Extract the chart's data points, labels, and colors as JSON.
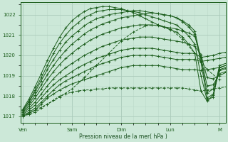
{
  "bg_color": "#cce8d8",
  "grid_color_major": "#aacaba",
  "grid_color_minor": "#bbd8c8",
  "line_color": "#1a5c1a",
  "xlabel": "Pression niveau de la mer( hPa )",
  "xlabel_color": "#1a5020",
  "xtick_labels": [
    "Ven",
    "Sam",
    "Dim",
    "Lun",
    "M"
  ],
  "xtick_positions": [
    0,
    24,
    48,
    72,
    96
  ],
  "ylim": [
    1016.7,
    1022.6
  ],
  "yticks": [
    1017,
    1018,
    1019,
    1020,
    1021,
    1022
  ],
  "xlim": [
    -1,
    99
  ],
  "series": [
    {
      "x": [
        0,
        3,
        6,
        9,
        12,
        15,
        18,
        21,
        24,
        27,
        30,
        33,
        36,
        39,
        42,
        45,
        48,
        51,
        54,
        57,
        60,
        63,
        66,
        69,
        72,
        75,
        78,
        81,
        84,
        87,
        90,
        93,
        96,
        99
      ],
      "y": [
        1017.0,
        1017.1,
        1017.2,
        1017.4,
        1017.6,
        1017.8,
        1018.0,
        1018.1,
        1018.2,
        1018.25,
        1018.3,
        1018.3,
        1018.35,
        1018.35,
        1018.4,
        1018.4,
        1018.4,
        1018.4,
        1018.4,
        1018.4,
        1018.4,
        1018.4,
        1018.4,
        1018.4,
        1018.4,
        1018.4,
        1018.4,
        1018.35,
        1018.3,
        1018.25,
        1018.3,
        1018.35,
        1018.4,
        1018.45
      ],
      "dashed": true
    },
    {
      "x": [
        0,
        3,
        6,
        9,
        12,
        15,
        18,
        21,
        24,
        27,
        30,
        33,
        36,
        39,
        42,
        45,
        48,
        51,
        54,
        57,
        60,
        63,
        66,
        69,
        72,
        75,
        78,
        81,
        84,
        87,
        90,
        93,
        96,
        99
      ],
      "y": [
        1017.0,
        1017.15,
        1017.3,
        1017.6,
        1017.9,
        1018.1,
        1018.3,
        1018.45,
        1018.6,
        1018.7,
        1018.8,
        1018.9,
        1019.0,
        1019.1,
        1019.2,
        1019.3,
        1019.4,
        1019.45,
        1019.5,
        1019.5,
        1019.5,
        1019.5,
        1019.5,
        1019.45,
        1019.4,
        1019.35,
        1019.3,
        1019.3,
        1019.3,
        1019.25,
        1019.3,
        1019.35,
        1019.4,
        1019.5
      ],
      "dashed": false
    },
    {
      "x": [
        0,
        3,
        6,
        9,
        12,
        15,
        18,
        21,
        24,
        27,
        30,
        33,
        36,
        39,
        42,
        45,
        48,
        51,
        54,
        57,
        60,
        63,
        66,
        69,
        72,
        75,
        78,
        81,
        84,
        87,
        90,
        93,
        96,
        99
      ],
      "y": [
        1017.05,
        1017.2,
        1017.4,
        1017.7,
        1018.0,
        1018.3,
        1018.55,
        1018.75,
        1018.9,
        1019.05,
        1019.2,
        1019.35,
        1019.5,
        1019.6,
        1019.7,
        1019.8,
        1019.9,
        1019.95,
        1020.0,
        1020.0,
        1020.0,
        1020.0,
        1019.95,
        1019.9,
        1019.85,
        1019.8,
        1019.8,
        1019.8,
        1019.8,
        1019.7,
        1019.75,
        1019.8,
        1019.85,
        1019.9
      ],
      "dashed": false
    },
    {
      "x": [
        0,
        3,
        6,
        9,
        12,
        15,
        18,
        21,
        24,
        27,
        30,
        33,
        36,
        39,
        42,
        45,
        48,
        51,
        54,
        57,
        60,
        63,
        66,
        69,
        72,
        75,
        78,
        81,
        84,
        87,
        90,
        93,
        96,
        99
      ],
      "y": [
        1017.1,
        1017.3,
        1017.55,
        1017.9,
        1018.25,
        1018.55,
        1018.8,
        1019.0,
        1019.2,
        1019.4,
        1019.55,
        1019.7,
        1019.85,
        1019.95,
        1020.05,
        1020.15,
        1020.25,
        1020.3,
        1020.35,
        1020.35,
        1020.35,
        1020.35,
        1020.3,
        1020.25,
        1020.2,
        1020.15,
        1020.1,
        1020.1,
        1020.1,
        1019.9,
        1019.95,
        1020.0,
        1020.1,
        1020.15
      ],
      "dashed": false
    },
    {
      "x": [
        0,
        3,
        6,
        9,
        12,
        15,
        18,
        21,
        24,
        27,
        30,
        33,
        36,
        39,
        42,
        45,
        48,
        51,
        54,
        57,
        60,
        63,
        66,
        69,
        72,
        75,
        78,
        81,
        84,
        87,
        90,
        93,
        96,
        99
      ],
      "y": [
        1017.15,
        1017.4,
        1017.7,
        1018.1,
        1018.5,
        1018.85,
        1019.15,
        1019.4,
        1019.6,
        1019.8,
        1020.0,
        1020.15,
        1020.3,
        1020.45,
        1020.55,
        1020.65,
        1020.75,
        1020.8,
        1020.85,
        1020.9,
        1020.9,
        1020.9,
        1020.85,
        1020.8,
        1020.75,
        1020.7,
        1020.65,
        1020.55,
        1020.45,
        1020.05,
        1018.9,
        1018.85,
        1019.0,
        1019.15
      ],
      "dashed": false
    },
    {
      "x": [
        0,
        3,
        6,
        9,
        12,
        15,
        18,
        21,
        24,
        27,
        30,
        33,
        36,
        39,
        42,
        45,
        48,
        51,
        54,
        57,
        60,
        63,
        66,
        69,
        72,
        75,
        78,
        81,
        84,
        87,
        90,
        93,
        96,
        99
      ],
      "y": [
        1017.2,
        1017.5,
        1017.9,
        1018.35,
        1018.8,
        1019.2,
        1019.55,
        1019.85,
        1020.1,
        1020.35,
        1020.55,
        1020.75,
        1020.9,
        1021.05,
        1021.15,
        1021.25,
        1021.35,
        1021.4,
        1021.45,
        1021.5,
        1021.5,
        1021.5,
        1021.45,
        1021.4,
        1021.35,
        1021.3,
        1021.2,
        1021.1,
        1020.95,
        1019.9,
        1018.5,
        1018.55,
        1019.1,
        1019.2
      ],
      "dashed": false
    },
    {
      "x": [
        0,
        3,
        6,
        9,
        12,
        15,
        18,
        21,
        24,
        27,
        30,
        33,
        36,
        39,
        42,
        45,
        48,
        51,
        54,
        57,
        60,
        63,
        66,
        69,
        72,
        75,
        78,
        81,
        84,
        87,
        90,
        93,
        96,
        99
      ],
      "y": [
        1017.25,
        1017.6,
        1018.05,
        1018.55,
        1019.05,
        1019.5,
        1019.9,
        1020.25,
        1020.55,
        1020.8,
        1021.05,
        1021.25,
        1021.4,
        1021.55,
        1021.65,
        1021.75,
        1021.85,
        1021.9,
        1021.95,
        1022.0,
        1022.05,
        1022.1,
        1022.05,
        1022.0,
        1021.95,
        1021.85,
        1021.7,
        1021.5,
        1021.2,
        1019.8,
        1018.15,
        1018.35,
        1019.25,
        1019.35
      ],
      "dashed": false
    },
    {
      "x": [
        0,
        3,
        6,
        9,
        12,
        15,
        18,
        21,
        24,
        27,
        30,
        33,
        36,
        39,
        42,
        45,
        48,
        51,
        54,
        57,
        60,
        63,
        66,
        69,
        72,
        75,
        78,
        81,
        84,
        87,
        90,
        93,
        96,
        99
      ],
      "y": [
        1017.3,
        1017.7,
        1018.2,
        1018.75,
        1019.3,
        1019.8,
        1020.25,
        1020.65,
        1020.95,
        1021.2,
        1021.45,
        1021.65,
        1021.8,
        1021.9,
        1022.0,
        1022.05,
        1022.1,
        1022.15,
        1022.2,
        1022.2,
        1022.15,
        1022.1,
        1022.05,
        1022.0,
        1021.95,
        1021.85,
        1021.65,
        1021.4,
        1021.05,
        1019.65,
        1017.9,
        1018.1,
        1019.3,
        1019.4
      ],
      "dashed": false
    },
    {
      "x": [
        0,
        3,
        6,
        9,
        12,
        15,
        18,
        21,
        24,
        27,
        30,
        33,
        36,
        39,
        42,
        45,
        48,
        51,
        54,
        57,
        60,
        63,
        66,
        69,
        72,
        75,
        78,
        81,
        84,
        87,
        90,
        93,
        96,
        99
      ],
      "y": [
        1017.3,
        1017.75,
        1018.3,
        1018.9,
        1019.5,
        1020.1,
        1020.6,
        1021.0,
        1021.35,
        1021.6,
        1021.85,
        1022.0,
        1022.15,
        1022.2,
        1022.25,
        1022.25,
        1022.25,
        1022.2,
        1022.15,
        1022.1,
        1022.0,
        1021.9,
        1021.8,
        1021.7,
        1021.6,
        1021.5,
        1021.25,
        1020.95,
        1020.55,
        1019.0,
        1017.8,
        1017.95,
        1019.4,
        1019.5
      ],
      "dashed": false
    },
    {
      "x": [
        0,
        3,
        6,
        9,
        12,
        15,
        18,
        21,
        24,
        27,
        30,
        33,
        36,
        39,
        42,
        45,
        48,
        51,
        54,
        57,
        60,
        63,
        66,
        69,
        72,
        75,
        78,
        81,
        84,
        87,
        90,
        93,
        96,
        99
      ],
      "y": [
        1017.35,
        1017.85,
        1018.45,
        1019.1,
        1019.75,
        1020.35,
        1020.9,
        1021.35,
        1021.7,
        1021.95,
        1022.15,
        1022.3,
        1022.35,
        1022.4,
        1022.4,
        1022.35,
        1022.3,
        1022.2,
        1022.1,
        1021.95,
        1021.8,
        1021.65,
        1021.5,
        1021.4,
        1021.25,
        1021.15,
        1020.9,
        1020.55,
        1020.1,
        1018.25,
        1017.75,
        1018.05,
        1019.5,
        1019.6
      ],
      "dashed": false
    },
    {
      "x": [
        0,
        6,
        12,
        18,
        24,
        30,
        36,
        42,
        48,
        54,
        60,
        66,
        72,
        78,
        84,
        90,
        96
      ],
      "y": [
        1017.0,
        1017.3,
        1017.6,
        1017.95,
        1018.35,
        1018.9,
        1019.5,
        1020.1,
        1020.7,
        1021.15,
        1021.45,
        1021.5,
        1021.3,
        1020.8,
        1020.1,
        1019.3,
        1018.8
      ],
      "dashed": true
    }
  ]
}
